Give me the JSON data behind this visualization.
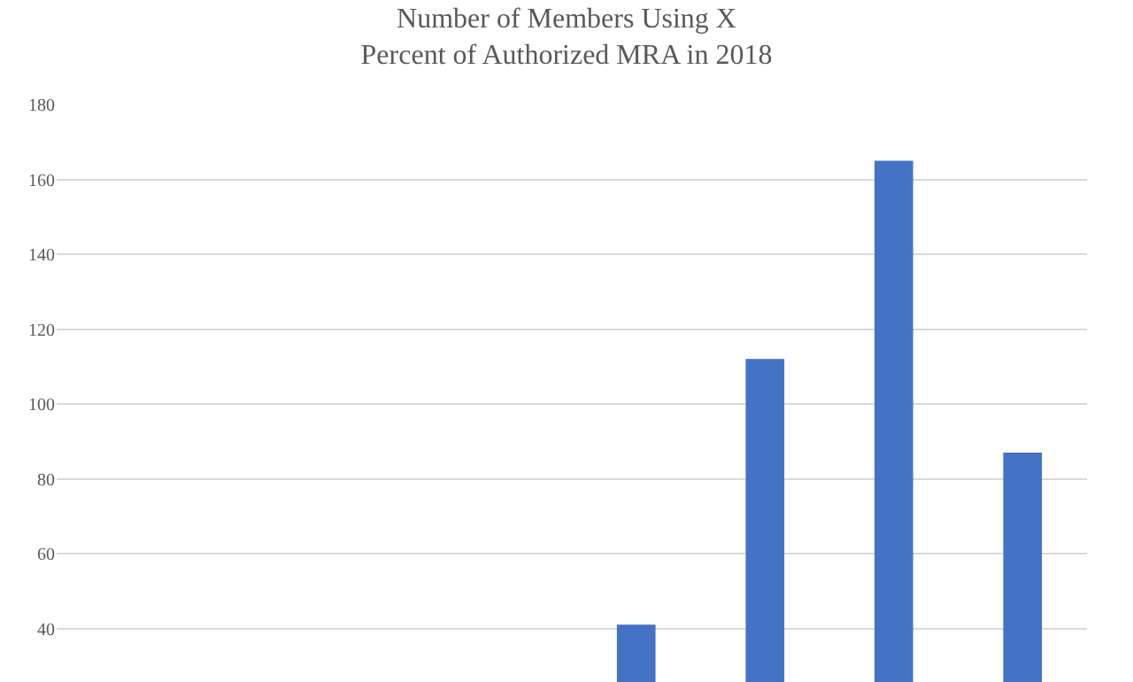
{
  "chart_data": {
    "type": "bar",
    "title": "Number of Members Using X\nPercent of Authorized MRA in 2018",
    "categories": [
      null,
      null,
      null,
      null,
      null,
      null,
      null,
      null
    ],
    "values": [
      null,
      null,
      null,
      null,
      41,
      112,
      165,
      87
    ],
    "color": "#4472c4",
    "ylim": [
      25.7,
      180
    ],
    "yticks": [
      40,
      60,
      80,
      100,
      120,
      140,
      160,
      180
    ],
    "grid": "y"
  }
}
